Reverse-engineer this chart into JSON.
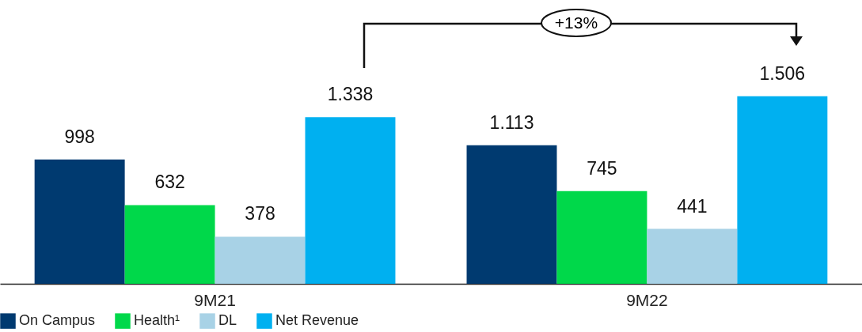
{
  "chart_data": {
    "type": "bar",
    "categories": [
      "9M21",
      "9M22"
    ],
    "series": [
      {
        "name": "On Campus",
        "color": "#003a70",
        "values": [
          998,
          1113
        ],
        "value_labels": [
          "998",
          "1.113"
        ]
      },
      {
        "name": "Health¹",
        "color": "#00d84a",
        "values": [
          632,
          745
        ],
        "value_labels": [
          "632",
          "745"
        ]
      },
      {
        "name": "DL",
        "color": "#a8d2e6",
        "values": [
          378,
          441
        ],
        "value_labels": [
          "378",
          "441"
        ]
      },
      {
        "name": "Net Revenue",
        "color": "#00b0f0",
        "values": [
          1338,
          1506
        ],
        "value_labels": [
          "1.338",
          "1.506"
        ]
      }
    ],
    "annotations": [
      "+13%"
    ],
    "legend": "bottom",
    "grid": false
  }
}
